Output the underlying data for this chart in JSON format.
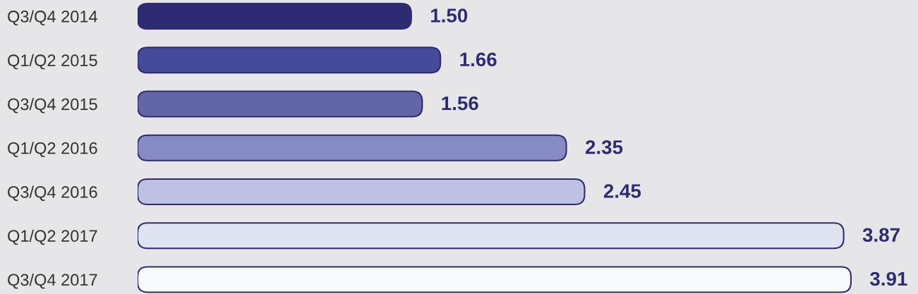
{
  "chart_data": {
    "type": "bar",
    "orientation": "horizontal",
    "categories": [
      "Q3/Q4 2014",
      "Q1/Q2 2015",
      "Q3/Q4 2015",
      "Q1/Q2 2016",
      "Q3/Q4 2016",
      "Q1/Q2 2017",
      "Q3/Q4 2017"
    ],
    "values": [
      1.5,
      1.66,
      1.56,
      2.35,
      2.45,
      3.87,
      3.91
    ],
    "value_labels": [
      "1.50",
      "1.66",
      "1.56",
      "2.35",
      "2.45",
      "3.87",
      "3.91"
    ],
    "colors": [
      "#2e2b72",
      "#454a9a",
      "#6366a6",
      "#868bc3",
      "#bec1e1",
      "#e0e3f2",
      "#f8f9fa"
    ],
    "tick_labels": "y"
  }
}
